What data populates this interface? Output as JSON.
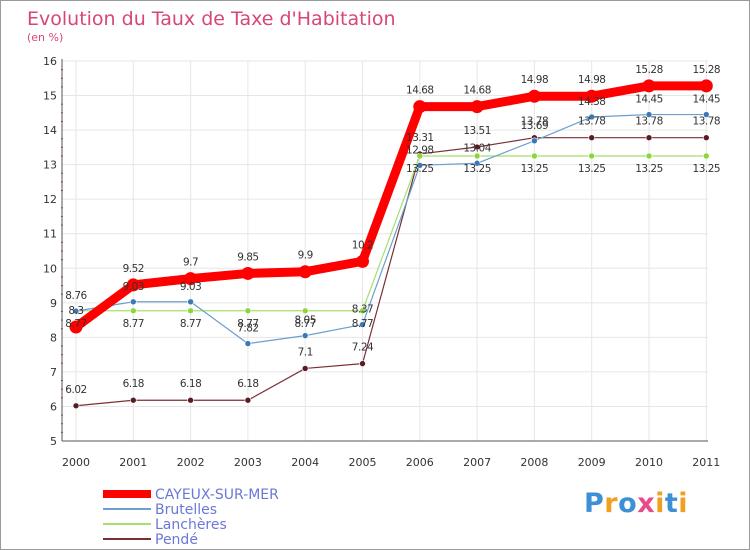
{
  "chart_data": {
    "type": "line",
    "title": "Evolution du Taux de Taxe d'Habitation",
    "subtitle": "(en %)",
    "x": [
      "2000",
      "2001",
      "2002",
      "2003",
      "2004",
      "2005",
      "2006",
      "2007",
      "2008",
      "2009",
      "2010",
      "2011"
    ],
    "ylim": [
      5,
      16
    ],
    "yticks": [
      "5",
      "6",
      "7",
      "8",
      "9",
      "10",
      "11",
      "12",
      "13",
      "14",
      "15",
      "16"
    ],
    "grid": true,
    "legend_position": "bottom-left",
    "series": [
      {
        "name": "CAYEUX-SUR-MER",
        "color": "#ff0000",
        "values": [
          8.3,
          9.52,
          9.7,
          9.85,
          9.9,
          10.2,
          14.68,
          14.68,
          14.98,
          14.98,
          15.28,
          15.28
        ],
        "labels": [
          "8.3",
          "9.52",
          "9.7",
          "9.85",
          "9.9",
          "10.2",
          "14.68",
          "14.68",
          "14.98",
          "14.98",
          "15.28",
          "15.28"
        ]
      },
      {
        "name": "Brutelles",
        "color": "#6a9fcf",
        "values": [
          8.76,
          9.03,
          9.03,
          7.82,
          8.05,
          8.37,
          12.98,
          13.04,
          13.69,
          14.38,
          14.45,
          14.45
        ],
        "labels": [
          "8.76",
          "9.03",
          "9.03",
          "7.82",
          "8.05",
          "8.37",
          "12.98",
          "13.04",
          "13.69",
          "14.38",
          "14.45",
          "14.45"
        ]
      },
      {
        "name": "Lanchères",
        "color": "#a6df6d",
        "values": [
          8.77,
          8.77,
          8.77,
          8.77,
          8.77,
          8.77,
          13.25,
          13.25,
          13.25,
          13.25,
          13.25,
          13.25
        ],
        "labels": [
          "8.77",
          "8.77",
          "8.77",
          "8.77",
          "8.77",
          "8.77",
          "13.25",
          "13.25",
          "13.25",
          "13.25",
          "13.25",
          "13.25"
        ]
      },
      {
        "name": "Pendé",
        "color": "#7a2f36",
        "values": [
          6.02,
          6.18,
          6.18,
          6.18,
          7.1,
          7.24,
          13.31,
          13.51,
          13.78,
          13.78,
          13.78,
          13.78
        ],
        "labels": [
          "6.02",
          "6.18",
          "6.18",
          "6.18",
          "7.1",
          "7.24",
          "13.31",
          "13.51",
          "13.78",
          "13.78",
          "13.78",
          "13.78"
        ]
      }
    ]
  },
  "logo": {
    "text": "Proxiti",
    "letters": [
      "P",
      "r",
      "o",
      "x",
      "i",
      "t",
      "i"
    ],
    "colors": [
      "#3d8fd6",
      "#f0a020",
      "#3d8fd6",
      "#e84a8a",
      "#f0a020",
      "#3d8fd6",
      "#f0a020"
    ]
  }
}
